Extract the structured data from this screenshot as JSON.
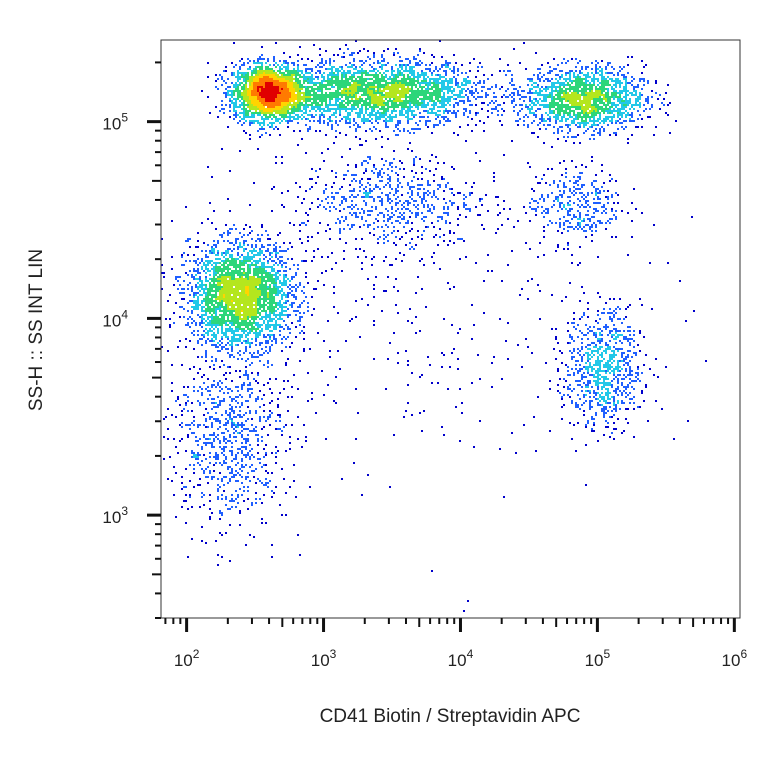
{
  "chart_data": {
    "type": "scatter",
    "subtype": "flow-cytometry density dot plot",
    "xlabel": "CD41 Biotin / Streptavidin APC",
    "ylabel": "SS-H :: SS INT LIN",
    "x_scale": "log",
    "y_scale": "log",
    "xlim": [
      65,
      1100000
    ],
    "ylim": [
      300,
      260000
    ],
    "x_ticks": [
      {
        "value": 100,
        "base": "10",
        "exp": "2"
      },
      {
        "value": 1000,
        "base": "10",
        "exp": "3"
      },
      {
        "value": 10000,
        "base": "10",
        "exp": "4"
      },
      {
        "value": 100000,
        "base": "10",
        "exp": "5"
      },
      {
        "value": 1000000,
        "base": "10",
        "exp": "6"
      }
    ],
    "y_ticks": [
      {
        "value": 1000,
        "base": "10",
        "exp": "3"
      },
      {
        "value": 10000,
        "base": "10",
        "exp": "4"
      },
      {
        "value": 100000,
        "base": "10",
        "exp": "5"
      }
    ],
    "grid": false,
    "legend": "none",
    "density_colors": [
      "#0000cc",
      "#1f5fff",
      "#22c8e8",
      "#2dd67a",
      "#b4e61e",
      "#ffd400",
      "#ff7a00",
      "#e00000"
    ],
    "populations": [
      {
        "x_center": 400,
        "y_center": 140000,
        "x_spread_log": 0.13,
        "y_spread_log": 0.07,
        "weight": 2600
      },
      {
        "x_center": 2500,
        "y_center": 140000,
        "x_spread_log": 0.38,
        "y_spread_log": 0.08,
        "weight": 3000
      },
      {
        "x_center": 80000,
        "y_center": 130000,
        "x_spread_log": 0.22,
        "y_spread_log": 0.08,
        "weight": 1800
      },
      {
        "x_center": 250,
        "y_center": 13000,
        "x_spread_log": 0.19,
        "y_spread_log": 0.13,
        "weight": 3000
      },
      {
        "x_center": 200,
        "y_center": 2500,
        "x_spread_log": 0.22,
        "y_spread_log": 0.22,
        "weight": 800
      },
      {
        "x_center": 110000,
        "y_center": 5500,
        "x_spread_log": 0.14,
        "y_spread_log": 0.15,
        "weight": 800
      },
      {
        "x_center": 3000,
        "y_center": 40000,
        "x_spread_log": 0.32,
        "y_spread_log": 0.12,
        "weight": 600
      },
      {
        "x_center": 70000,
        "y_center": 38000,
        "x_spread_log": 0.17,
        "y_spread_log": 0.1,
        "weight": 350
      },
      {
        "x_center": 3000,
        "y_center": 12000,
        "x_spread_log": 0.9,
        "y_spread_log": 0.5,
        "weight": 450
      }
    ]
  }
}
